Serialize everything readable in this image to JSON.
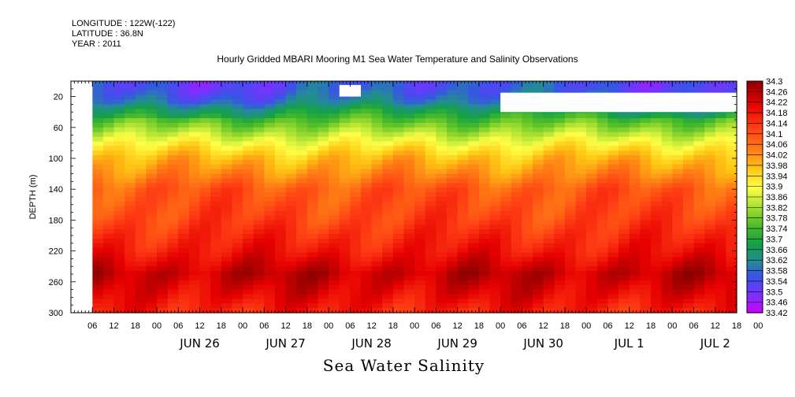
{
  "header": {
    "longitude": "LONGITUDE : 122W(-122)",
    "latitude": "LATITUDE : 36.8N",
    "year": "YEAR : 2011"
  },
  "chart_data": {
    "type": "heatmap",
    "title": "Hourly Gridded MBARI Mooring M1 Sea Water Temperature and Salinity Observations",
    "xlabel": "Sea Water Salinity",
    "ylabel": "DEPTH (m)",
    "x_range": [
      "2011-06-25T00:00",
      "2011-07-02T18:00"
    ],
    "ylim": [
      300,
      0
    ],
    "y_ticks": [
      20,
      60,
      100,
      140,
      180,
      220,
      260,
      300
    ],
    "x_hour_ticks": [
      "06",
      "12",
      "18",
      "00",
      "06",
      "12",
      "18",
      "00",
      "06",
      "12",
      "18",
      "00",
      "06",
      "12",
      "18",
      "00",
      "06",
      "12",
      "18",
      "00",
      "06",
      "12",
      "18",
      "00",
      "06",
      "12",
      "18",
      "00",
      "06",
      "12",
      "18",
      "00"
    ],
    "x_day_labels": [
      "JUN 26",
      "JUN 27",
      "JUN 28",
      "JUN 29",
      "JUN 30",
      "JUL  1",
      "JUL  2"
    ],
    "colorbar_labels": [
      "34.3",
      "34.26",
      "34.22",
      "34.18",
      "34.14",
      "34.1",
      "34.06",
      "34.02",
      "33.98",
      "33.94",
      "33.9",
      "33.86",
      "33.82",
      "33.78",
      "33.74",
      "33.7",
      "33.66",
      "33.62",
      "33.58",
      "33.54",
      "33.5",
      "33.46",
      "33.42"
    ],
    "colorbar_range": [
      33.42,
      34.3
    ],
    "data_start": "2011-06-25T06:00",
    "depth_profile": [
      {
        "depth": 10,
        "salinity": 33.56
      },
      {
        "depth": 25,
        "salinity": 33.6
      },
      {
        "depth": 40,
        "salinity": 33.7
      },
      {
        "depth": 60,
        "salinity": 33.8
      },
      {
        "depth": 80,
        "salinity": 33.9
      },
      {
        "depth": 100,
        "salinity": 33.98
      },
      {
        "depth": 120,
        "salinity": 34.03
      },
      {
        "depth": 140,
        "salinity": 34.09
      },
      {
        "depth": 180,
        "salinity": 34.12
      },
      {
        "depth": 220,
        "salinity": 34.18
      },
      {
        "depth": 250,
        "salinity": 34.25
      },
      {
        "depth": 280,
        "salinity": 34.2
      },
      {
        "depth": 300,
        "salinity": 34.16
      }
    ],
    "missing_regions": [
      {
        "start": "2011-06-25T00:00",
        "end": "2011-06-25T06:00",
        "depth_min": 0,
        "depth_max": 300
      },
      {
        "start": "2011-06-28T03:00",
        "end": "2011-06-28T09:00",
        "depth_min": 5,
        "depth_max": 20
      },
      {
        "start": "2011-06-30T00:00",
        "end": "2011-07-02T18:00",
        "depth_min": 15,
        "depth_max": 40
      }
    ]
  }
}
